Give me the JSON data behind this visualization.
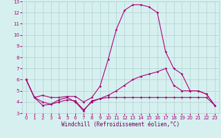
{
  "xlabel": "Windchill (Refroidissement éolien,°C)",
  "xlim": [
    -0.5,
    23.5
  ],
  "ylim": [
    3,
    13
  ],
  "yticks": [
    3,
    4,
    5,
    6,
    7,
    8,
    9,
    10,
    11,
    12,
    13
  ],
  "xticks": [
    0,
    1,
    2,
    3,
    4,
    5,
    6,
    7,
    8,
    9,
    10,
    11,
    12,
    13,
    14,
    15,
    16,
    17,
    18,
    19,
    20,
    21,
    22,
    23
  ],
  "bg_color": "#d6f0f0",
  "grid_color": "#b0d0d0",
  "line_color": "#aa0077",
  "line1_y": [
    6.0,
    4.4,
    3.7,
    3.8,
    4.2,
    4.4,
    4.0,
    3.2,
    4.1,
    4.3,
    4.4,
    4.4,
    4.4,
    4.4,
    4.4,
    4.4,
    4.4,
    4.4,
    4.4,
    4.4,
    4.4,
    4.4,
    4.4,
    3.7
  ],
  "line2_y": [
    6.0,
    4.4,
    4.6,
    4.4,
    4.4,
    4.5,
    4.5,
    4.0,
    4.4,
    5.4,
    7.8,
    10.5,
    12.2,
    12.7,
    12.7,
    12.5,
    12.0,
    8.5,
    7.0,
    6.5,
    5.0,
    5.0,
    4.7,
    3.7
  ],
  "line3_y": [
    6.0,
    4.4,
    4.0,
    3.8,
    4.0,
    4.2,
    4.1,
    3.3,
    4.0,
    4.3,
    4.6,
    5.0,
    5.5,
    6.0,
    6.3,
    6.5,
    6.7,
    7.0,
    5.5,
    5.0,
    5.0,
    5.0,
    4.7,
    3.7
  ],
  "marker": "D",
  "markersize": 1.8,
  "linewidth": 0.8,
  "tick_fontsize": 5,
  "xlabel_fontsize": 5.5,
  "xlabel_color": "#660055"
}
